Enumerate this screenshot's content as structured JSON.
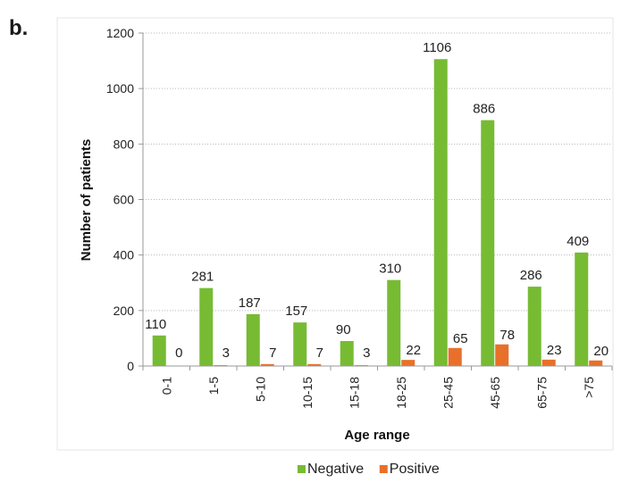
{
  "panel_label": "b.",
  "chart_data": {
    "type": "bar",
    "categories": [
      "0-1",
      "1-5",
      "5-10",
      "10-15",
      "15-18",
      "18-25",
      "25-45",
      "45-65",
      "65-75",
      ">75"
    ],
    "series": [
      {
        "name": "Negative",
        "color": "#77bb33",
        "values": [
          110,
          281,
          187,
          157,
          90,
          310,
          1106,
          886,
          286,
          409
        ]
      },
      {
        "name": "Positive",
        "color": "#e8702a",
        "values": [
          0,
          3,
          7,
          7,
          3,
          22,
          65,
          78,
          23,
          20
        ]
      }
    ],
    "xlabel": "Age range",
    "ylabel": "Number of patients",
    "ylim": [
      0,
      1200
    ],
    "yticks": [
      0,
      200,
      400,
      600,
      800,
      1000,
      1200
    ],
    "grid": true,
    "legend": "bottom-center"
  }
}
